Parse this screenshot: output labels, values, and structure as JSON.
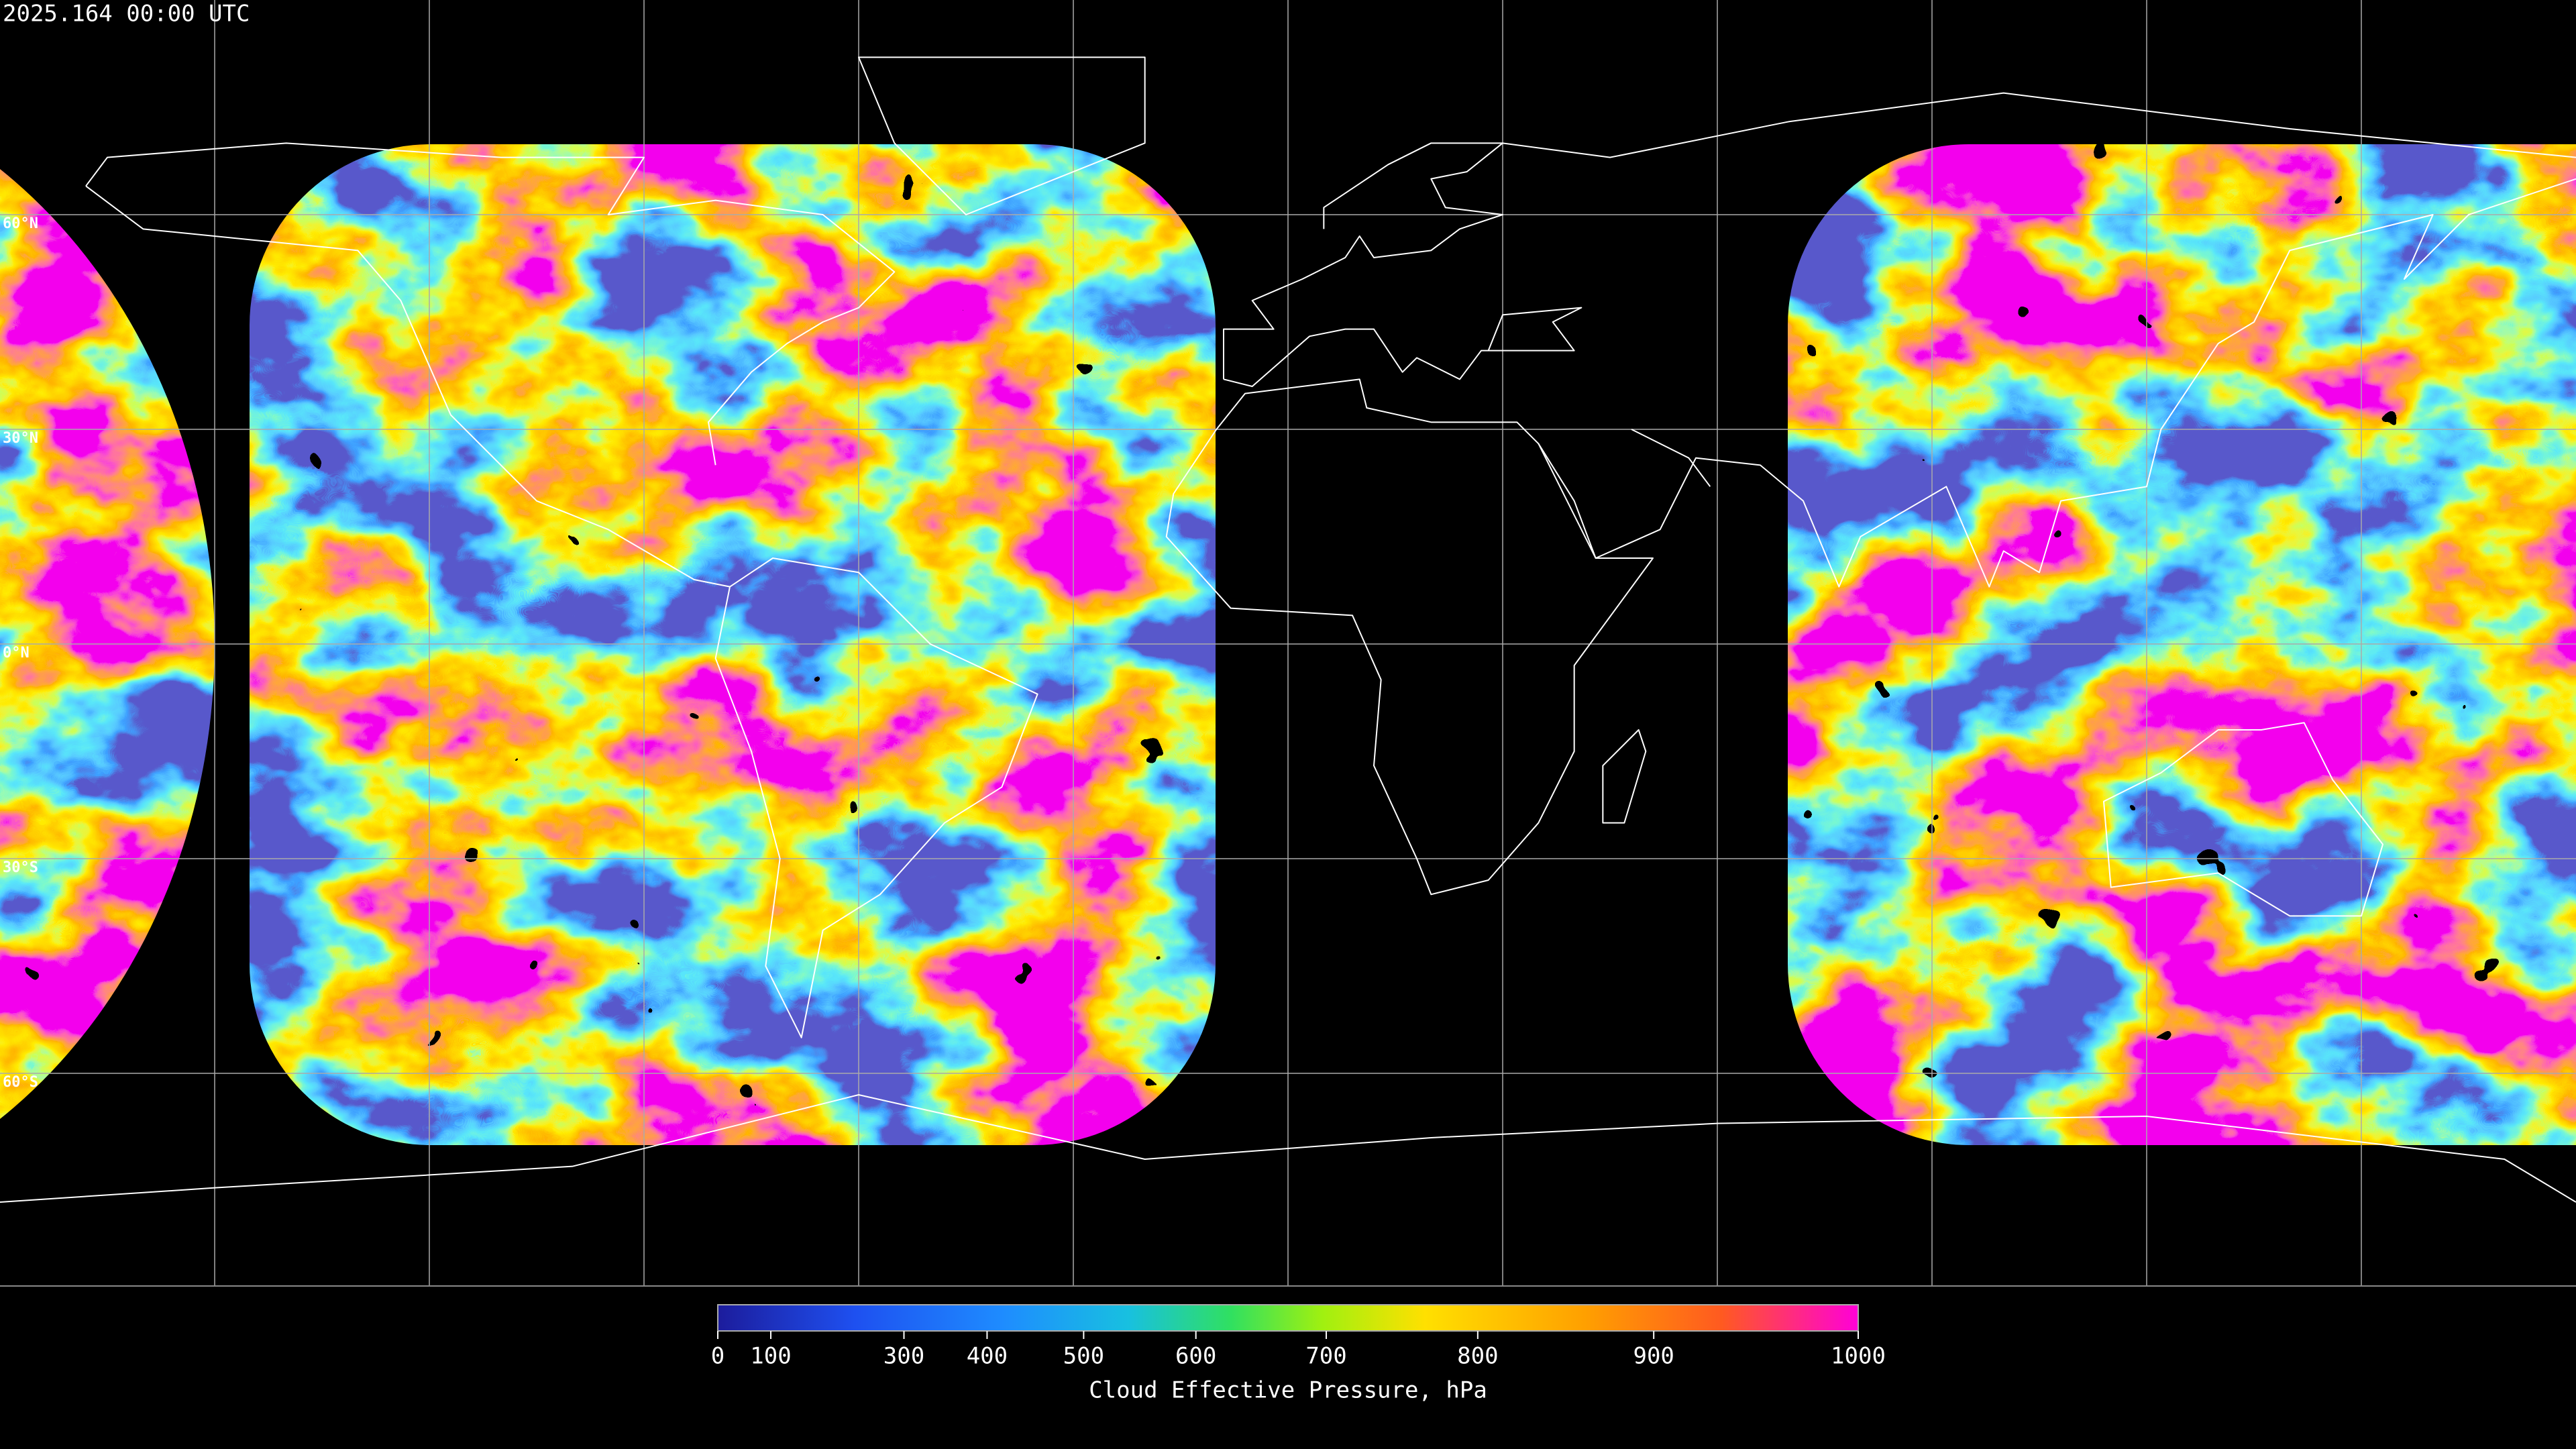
{
  "header": {
    "timestamp": "2025.164 00:00 UTC"
  },
  "map": {
    "lat_labels": [
      "60°N",
      "30°N",
      "0°N",
      "30°S",
      "60°S"
    ]
  },
  "colorbar": {
    "title": "Cloud Effective Pressure, hPa",
    "lim": [
      0,
      1000
    ],
    "ticks": [
      0,
      100,
      300,
      400,
      500,
      600,
      700,
      800,
      900,
      1000
    ]
  }
}
